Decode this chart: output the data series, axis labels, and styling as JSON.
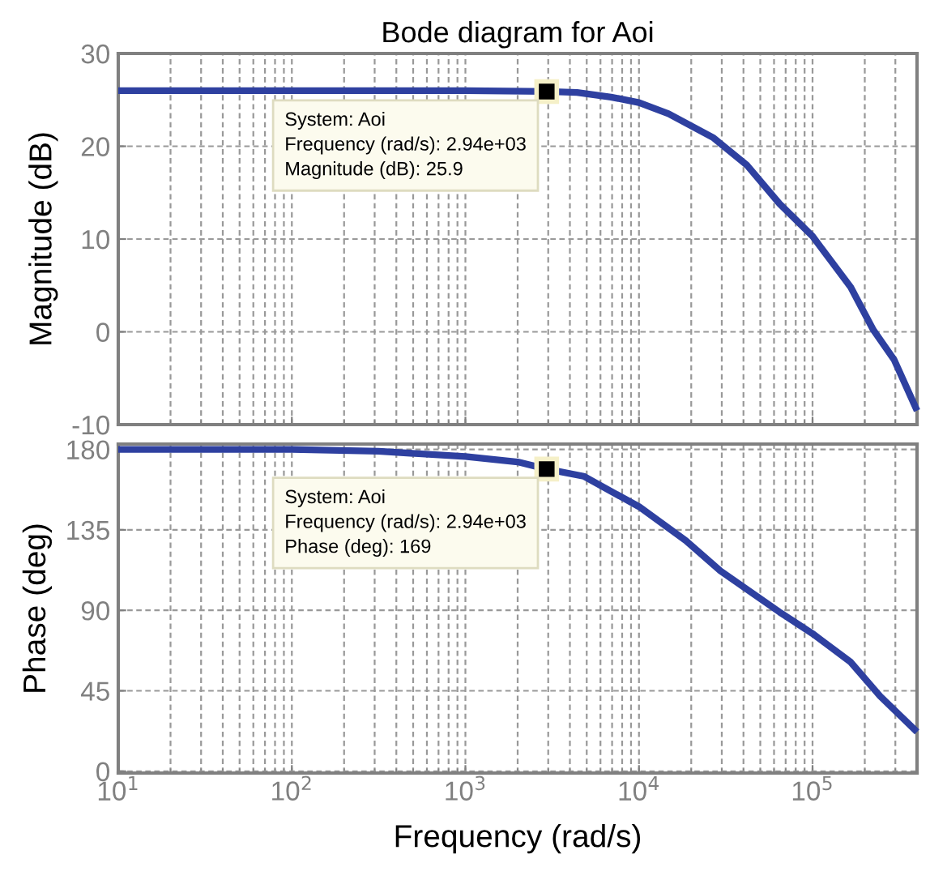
{
  "chart_data": [
    {
      "type": "line",
      "title": "Bode diagram for Aoi",
      "ylabel": "Magnitude (dB)",
      "log": "x",
      "xlim": [
        10,
        400000
      ],
      "xticks": [
        {
          "value": 10,
          "label": null
        },
        {
          "value": 100,
          "label": null
        },
        {
          "value": 1000,
          "label": null
        },
        {
          "value": 10000,
          "label": null
        },
        {
          "value": 100000,
          "label": null
        }
      ],
      "ylim": [
        -10,
        30
      ],
      "yticks": [
        -10,
        0,
        10,
        20,
        30
      ],
      "grid": true,
      "tick_labels": "y",
      "series": [
        {
          "color": "#2e40a0",
          "x": [
            10,
            100,
            1000,
            2940,
            4400,
            6900,
            10000,
            14800,
            26900,
            41700,
            64600,
            100000,
            166000,
            224000,
            295000,
            400000
          ],
          "values": [
            26.0,
            26.0,
            26.0,
            25.9,
            25.8,
            25.3,
            24.7,
            23.5,
            20.9,
            18.0,
            13.8,
            10.3,
            4.8,
            0.2,
            -3.0,
            -8.5
          ]
        }
      ],
      "annotations": [
        {
          "text": "System: Aoi\nFrequency (rad/s): 2.94e+03\nMagnitude (dB): 25.9",
          "x": 2940,
          "y": 25.9
        }
      ]
    },
    {
      "type": "line",
      "xlabel": "Frequency (rad/s)",
      "ylabel": "Phase (deg)",
      "log": "x",
      "xlim": [
        10,
        400000
      ],
      "xticks": [
        {
          "value": 10,
          "label": "10$^{1}$"
        },
        {
          "value": 100,
          "label": "10$^{2}$"
        },
        {
          "value": 1000,
          "label": "10$^{3}$"
        },
        {
          "value": 10000,
          "label": "10$^{4}$"
        },
        {
          "value": 100000,
          "label": "10$^{5}$"
        }
      ],
      "ylim": [
        -1,
        183
      ],
      "yticks": [
        0,
        45,
        90,
        135,
        180
      ],
      "grid": true,
      "series": [
        {
          "color": "#2e40a0",
          "x": [
            10,
            100,
            316,
            1000,
            2000,
            2940,
            4800,
            10000,
            18600,
            29500,
            64600,
            100000,
            166000,
            245000,
            400000
          ],
          "values": [
            180,
            180,
            179,
            176,
            173,
            169,
            165,
            148,
            129,
            112,
            89,
            77,
            61,
            42,
            22
          ]
        }
      ],
      "annotations": [
        {
          "text": "System: Aoi\nFrequency (rad/s): 2.94e+03\nPhase (deg): 169",
          "x": 2940,
          "y": 169
        }
      ]
    }
  ]
}
